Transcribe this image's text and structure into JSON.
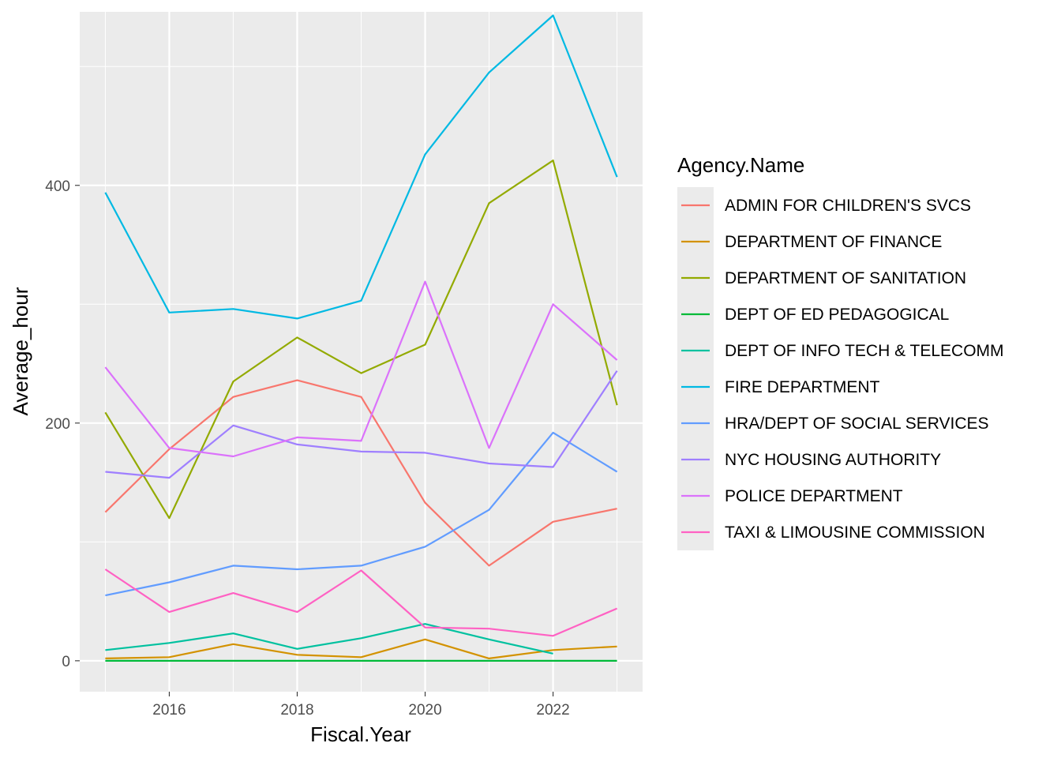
{
  "chart_data": {
    "type": "line",
    "title": "",
    "xlabel": "Fiscal.Year",
    "ylabel": "Average_hour",
    "x": [
      2015,
      2016,
      2017,
      2018,
      2019,
      2020,
      2021,
      2022,
      2023
    ],
    "xlim": [
      2014.6,
      2023.4
    ],
    "ylim": [
      -26,
      546
    ],
    "x_ticks": [
      2016,
      2018,
      2020,
      2022
    ],
    "x_tick_labels": [
      "2016",
      "2018",
      "2020",
      "2022"
    ],
    "y_ticks": [
      0,
      200,
      400
    ],
    "y_tick_labels": [
      "0",
      "200",
      "400"
    ],
    "grid": true,
    "background": "#ebebeb",
    "legend": {
      "title": "Agency.Name",
      "placement": "right"
    },
    "series": [
      {
        "name": "ADMIN FOR CHILDREN'S SVCS",
        "color": "#F8766D",
        "values": [
          125,
          178,
          222,
          236,
          222,
          133,
          80,
          117,
          128
        ]
      },
      {
        "name": "DEPARTMENT OF FINANCE",
        "color": "#D39200",
        "values": [
          2,
          3,
          14,
          5,
          3,
          18,
          2,
          9,
          12
        ]
      },
      {
        "name": "DEPARTMENT OF SANITATION",
        "color": "#93AA00",
        "values": [
          209,
          120,
          235,
          272,
          242,
          266,
          385,
          421,
          215
        ]
      },
      {
        "name": "DEPT OF ED PEDAGOGICAL",
        "color": "#00BA38",
        "values": [
          0,
          0,
          0,
          0,
          0,
          0,
          0,
          0,
          0
        ]
      },
      {
        "name": "DEPT OF INFO TECH & TELECOMM",
        "color": "#00C19F",
        "values": [
          9,
          15,
          23,
          10,
          19,
          31,
          18,
          6,
          null
        ]
      },
      {
        "name": "FIRE DEPARTMENT",
        "color": "#00B9E3",
        "values": [
          394,
          293,
          296,
          288,
          303,
          426,
          495,
          543,
          407
        ]
      },
      {
        "name": "HRA/DEPT OF SOCIAL SERVICES",
        "color": "#619CFF",
        "values": [
          55,
          66,
          80,
          77,
          80,
          96,
          127,
          192,
          159
        ]
      },
      {
        "name": "NYC HOUSING AUTHORITY",
        "color": "#9F7FFF",
        "values": [
          159,
          154,
          198,
          182,
          176,
          175,
          166,
          163,
          244
        ]
      },
      {
        "name": "POLICE DEPARTMENT",
        "color": "#DB72FB",
        "values": [
          247,
          179,
          172,
          188,
          185,
          319,
          179,
          300,
          253
        ]
      },
      {
        "name": "TAXI & LIMOUSINE COMMISSION",
        "color": "#FF61C3",
        "values": [
          77,
          41,
          57,
          41,
          76,
          28,
          27,
          21,
          44
        ]
      }
    ]
  }
}
